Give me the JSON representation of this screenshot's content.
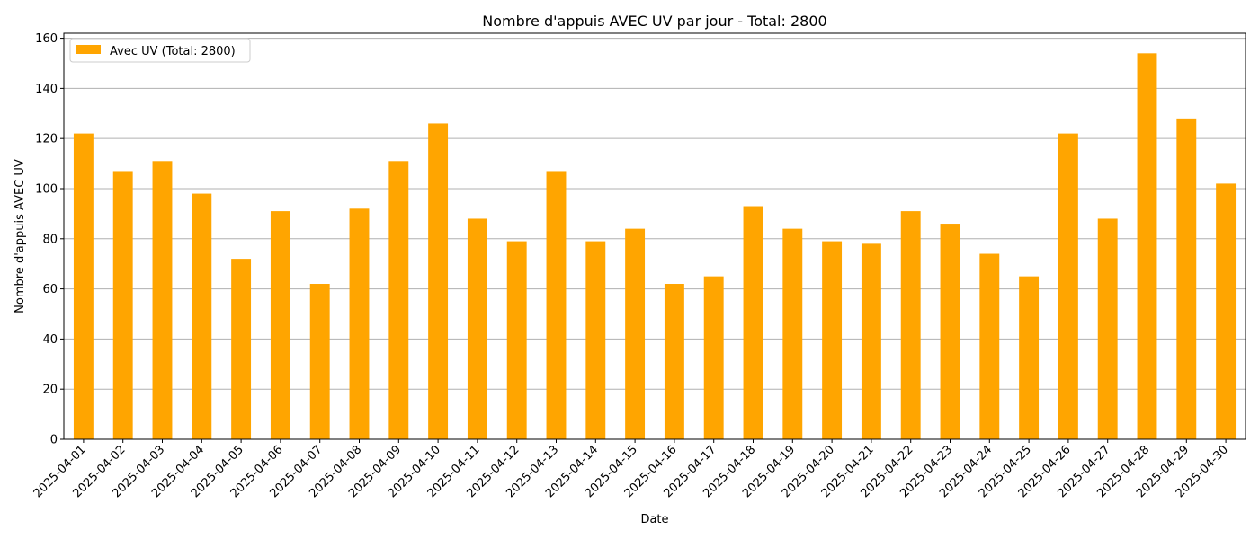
{
  "chart_data": {
    "type": "bar",
    "title": "Nombre d'appuis AVEC UV par jour - Total: 2800",
    "xlabel": "Date",
    "ylabel": "Nombre d'appuis AVEC UV",
    "ylim": [
      0,
      162
    ],
    "yticks": [
      0,
      20,
      40,
      60,
      80,
      100,
      120,
      140,
      160
    ],
    "grid": "horizontal",
    "legend_position": "upper-left",
    "color": "#ffa500",
    "categories": [
      "2025-04-01",
      "2025-04-02",
      "2025-04-03",
      "2025-04-04",
      "2025-04-05",
      "2025-04-06",
      "2025-04-07",
      "2025-04-08",
      "2025-04-09",
      "2025-04-10",
      "2025-04-11",
      "2025-04-12",
      "2025-04-13",
      "2025-04-14",
      "2025-04-15",
      "2025-04-16",
      "2025-04-17",
      "2025-04-18",
      "2025-04-19",
      "2025-04-20",
      "2025-04-21",
      "2025-04-22",
      "2025-04-23",
      "2025-04-24",
      "2025-04-25",
      "2025-04-26",
      "2025-04-27",
      "2025-04-28",
      "2025-04-29",
      "2025-04-30"
    ],
    "series": [
      {
        "name": "Avec UV (Total: 2800)",
        "values": [
          122,
          107,
          111,
          98,
          72,
          91,
          62,
          92,
          111,
          126,
          88,
          79,
          107,
          79,
          84,
          62,
          65,
          93,
          84,
          79,
          78,
          91,
          86,
          74,
          65,
          122,
          88,
          154,
          128,
          102
        ]
      }
    ]
  }
}
